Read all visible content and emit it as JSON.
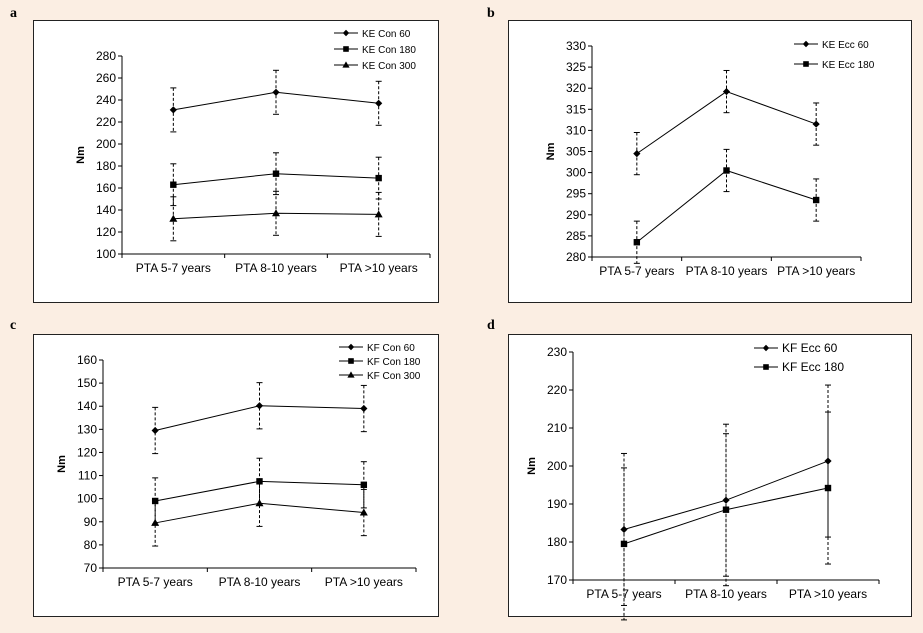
{
  "chart_data": [
    {
      "panel": "a",
      "type": "line",
      "categories": [
        "PTA 5-7 years",
        "PTA 8-10 years",
        "PTA >10 years"
      ],
      "ylabel": "Nm",
      "ylim": [
        100,
        280
      ],
      "yticks": [
        100,
        120,
        140,
        160,
        180,
        200,
        220,
        240,
        260,
        280
      ],
      "series": [
        {
          "name": "KE Con  60",
          "marker": "diamond",
          "values": [
            231,
            247,
            237
          ],
          "errors": [
            20,
            20,
            20
          ]
        },
        {
          "name": "KE Con 180",
          "marker": "square",
          "values": [
            163,
            173,
            169
          ],
          "errors": [
            19,
            19,
            19
          ]
        },
        {
          "name": "KE Con 300",
          "marker": "triangle",
          "values": [
            132,
            137,
            136
          ],
          "errors": [
            20,
            20,
            20
          ]
        }
      ]
    },
    {
      "panel": "b",
      "type": "line",
      "categories": [
        "PTA 5-7 years",
        "PTA 8-10 years",
        "PTA >10 years"
      ],
      "ylabel": "Nm",
      "ylim": [
        280,
        330
      ],
      "yticks": [
        280,
        285,
        290,
        295,
        300,
        305,
        310,
        315,
        320,
        325,
        330
      ],
      "series": [
        {
          "name": "KE Ecc  60",
          "marker": "diamond",
          "values": [
            304.5,
            319.2,
            311.5
          ],
          "errors": [
            5,
            5,
            5
          ]
        },
        {
          "name": "KE Ecc 180",
          "marker": "square",
          "values": [
            283.5,
            300.5,
            293.5
          ],
          "errors": [
            5,
            5,
            5
          ]
        }
      ]
    },
    {
      "panel": "c",
      "type": "line",
      "categories": [
        "PTA 5-7 years",
        "PTA 8-10 years",
        "PTA >10 years"
      ],
      "ylabel": "Nm",
      "ylim": [
        70,
        160
      ],
      "yticks": [
        70,
        80,
        90,
        100,
        110,
        120,
        130,
        140,
        150,
        160
      ],
      "series": [
        {
          "name": "KF Con 60",
          "marker": "diamond",
          "values": [
            129.5,
            140.2,
            139
          ],
          "errors": [
            10,
            10,
            10
          ]
        },
        {
          "name": "KF Con 180",
          "marker": "square",
          "values": [
            99,
            107.5,
            106
          ],
          "errors": [
            10,
            10,
            10
          ]
        },
        {
          "name": "KF Con 300",
          "marker": "triangle",
          "values": [
            89.5,
            98,
            94
          ],
          "errors": [
            10,
            10,
            10
          ]
        }
      ]
    },
    {
      "panel": "d",
      "type": "line",
      "categories": [
        "PTA 5-7 years",
        "PTA 8-10 years",
        "PTA >10 years"
      ],
      "ylabel": "Nm",
      "ylim": [
        170,
        230
      ],
      "yticks": [
        170,
        180,
        190,
        200,
        210,
        220,
        230
      ],
      "series": [
        {
          "name": "KF Ecc 60",
          "marker": "diamond",
          "values": [
            183.3,
            191,
            201.3
          ],
          "errors": [
            20,
            20,
            20
          ]
        },
        {
          "name": "KF Ecc 180",
          "marker": "square",
          "values": [
            179.5,
            188.5,
            194.2
          ],
          "errors": [
            20,
            20,
            20
          ]
        }
      ]
    }
  ]
}
